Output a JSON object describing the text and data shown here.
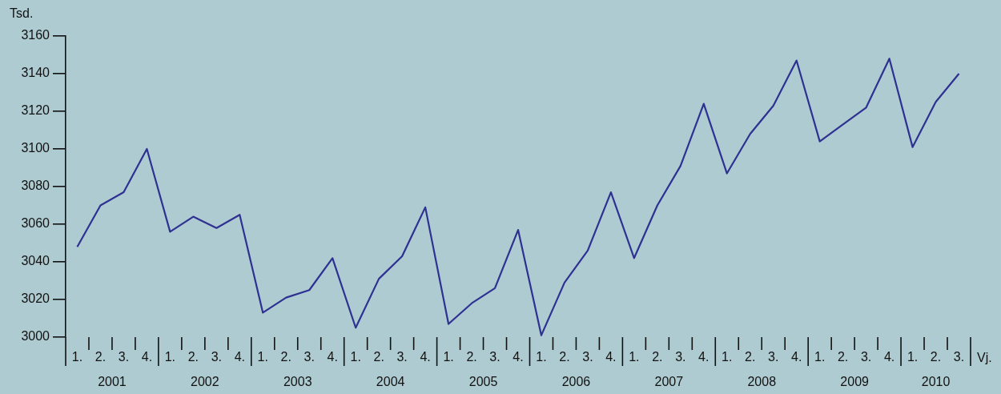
{
  "chart_data": {
    "type": "line",
    "ylabel": "Tsd.",
    "xlabel": "Vj.",
    "categories": [
      "1.",
      "2.",
      "3.",
      "4.",
      "1.",
      "2.",
      "3.",
      "4.",
      "1.",
      "2.",
      "3.",
      "4.",
      "1.",
      "2.",
      "3.",
      "4.",
      "1.",
      "2.",
      "3.",
      "4.",
      "1.",
      "2.",
      "3.",
      "4.",
      "1.",
      "2.",
      "3.",
      "4.",
      "1.",
      "2.",
      "3.",
      "4.",
      "1.",
      "2.",
      "3.",
      "4.",
      "1.",
      "2.",
      "3."
    ],
    "series": [
      {
        "color": "#2e3192",
        "values": [
          3048,
          3070,
          3077,
          3100,
          3056,
          3064,
          3058,
          3065,
          3013,
          3021,
          3025,
          3042,
          3005,
          3031,
          3043,
          3069,
          3007,
          3018,
          3026,
          3057,
          3001,
          3029,
          3046,
          3077,
          3042,
          3070,
          3091,
          3124,
          3087,
          3108,
          3123,
          3147,
          3104,
          3113,
          3122,
          3148,
          3101,
          3125,
          3140
        ]
      }
    ],
    "ylim": [
      3000,
      3160
    ],
    "yticks": [
      3000,
      3020,
      3040,
      3060,
      3080,
      3100,
      3120,
      3140,
      3160
    ],
    "annotations": [
      "2001",
      "2002",
      "2003",
      "2004",
      "2005",
      "2006",
      "2007",
      "2008",
      "2009",
      "2010"
    ],
    "legend": false,
    "marker": "none",
    "line_style": "solid"
  }
}
